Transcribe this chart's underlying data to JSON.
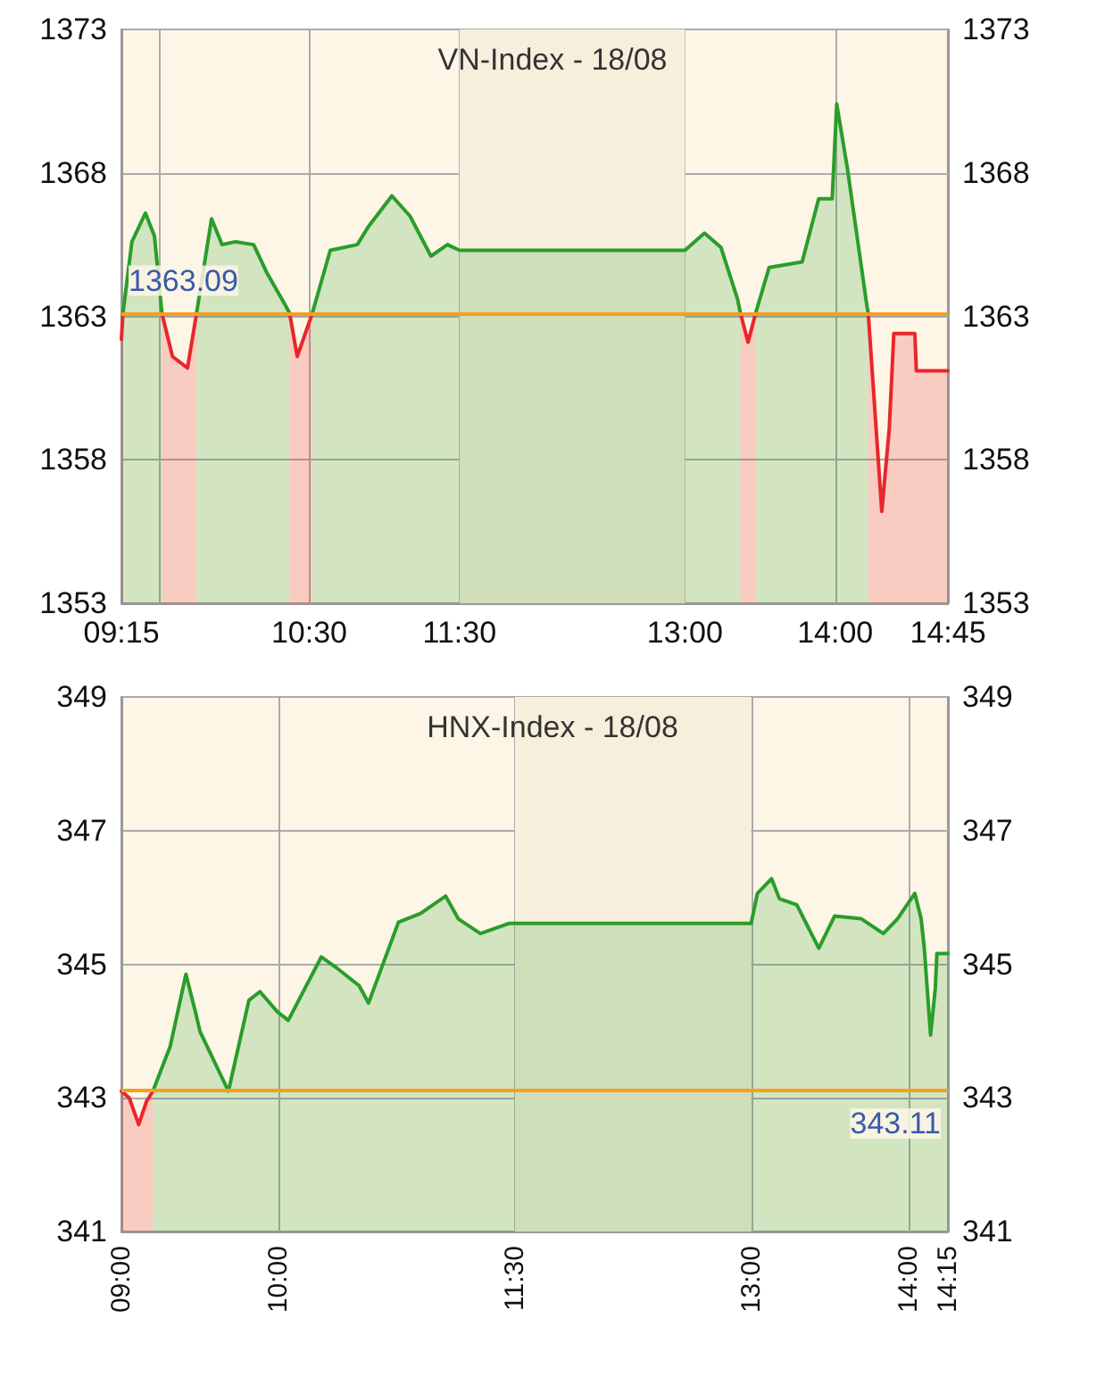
{
  "chart_data": [
    {
      "type": "area",
      "title": "VN-Index - 18/08",
      "grid": true,
      "marker": "none",
      "line_style": "solid",
      "x": [
        9.25,
        9.26,
        9.32,
        9.41,
        9.47,
        9.52,
        9.59,
        9.69,
        9.75,
        9.85,
        9.92,
        10.01,
        10.13,
        10.22,
        10.34,
        10.37,
        10.42,
        10.52,
        10.64,
        10.82,
        10.89,
        11.05,
        11.17,
        11.31,
        11.42,
        11.5,
        13.0,
        13.13,
        13.24,
        13.35,
        13.37,
        13.42,
        13.47,
        13.56,
        13.78,
        13.89,
        13.98,
        14.01,
        14.08,
        14.21,
        14.22,
        14.31,
        14.36,
        14.39,
        14.53,
        14.54,
        14.75
      ],
      "series": [
        {
          "color": "#2a9d2a",
          "values": [
            null,
            1363.1,
            1365.6,
            1366.6,
            1365.8,
            1363.1,
            null,
            null,
            1363.1,
            1366.4,
            1365.5,
            1365.6,
            1365.5,
            1364.5,
            1363.4,
            1363.1,
            null,
            1363.1,
            1365.3,
            1365.5,
            1366.1,
            1367.2,
            1366.5,
            1365.1,
            1365.5,
            1365.3,
            1365.3,
            1365.9,
            1365.4,
            1363.6,
            1363.1,
            null,
            1363.1,
            1364.7,
            1364.9,
            1367.1,
            1367.1,
            1370.4,
            1368.2,
            1363.4,
            1363.1,
            null,
            null,
            null,
            null,
            null,
            null
          ]
        },
        {
          "color": "#e8262b",
          "values": [
            1362.2,
            1363.1,
            null,
            null,
            null,
            1363.1,
            1361.6,
            1361.2,
            1363.1,
            null,
            null,
            null,
            null,
            null,
            null,
            1363.1,
            1361.6,
            1363.1,
            null,
            null,
            null,
            null,
            null,
            null,
            null,
            null,
            null,
            null,
            null,
            null,
            1363.1,
            1362.1,
            1363.1,
            null,
            null,
            null,
            null,
            null,
            null,
            null,
            1363.1,
            1356.2,
            1359.1,
            1362.4,
            1362.4,
            1361.1,
            1361.1
          ]
        }
      ],
      "xlim": [
        9.25,
        14.75
      ],
      "xticks": [
        {
          "value": 9.25,
          "label": "09:15"
        },
        {
          "value": 9.5,
          "label": null
        },
        {
          "value": 10.5,
          "label": "10:30"
        },
        {
          "value": 11.5,
          "label": "11:30"
        },
        {
          "value": 13,
          "label": "13:00"
        },
        {
          "value": 14,
          "label": "14:00"
        },
        {
          "value": 14.75,
          "label": "14:45"
        }
      ],
      "ylim": [
        1353,
        1373
      ],
      "yticks": [
        1353,
        1358,
        1363,
        1368,
        1373
      ],
      "y2lim": [
        1353,
        1373
      ],
      "y2ticks": [
        1353,
        1358,
        1363,
        1368,
        1373
      ],
      "ref_lines": [
        {
          "axis": "y",
          "value": 1363.09,
          "label": "1363.09",
          "color": "#f5a01e"
        }
      ],
      "bands": [
        {
          "axis": "x",
          "from": 11.5,
          "to": 13,
          "color": "#f8eedc"
        }
      ]
    },
    {
      "type": "area",
      "title": "HNX-Index - 18/08",
      "grid": true,
      "marker": "none",
      "line_style": "solid",
      "x": [
        9.0,
        9.05,
        9.11,
        9.16,
        9.2,
        9.31,
        9.41,
        9.47,
        9.5,
        9.68,
        9.81,
        9.88,
        9.99,
        10.06,
        10.27,
        10.37,
        10.51,
        10.57,
        10.76,
        10.9,
        11.06,
        11.14,
        11.28,
        11.46,
        11.5,
        13.0,
        13.04,
        13.13,
        13.18,
        13.29,
        13.43,
        13.53,
        13.7,
        13.84,
        13.93,
        14.04,
        14.08,
        14.1,
        14.14,
        14.17,
        14.18,
        14.25
      ],
      "series": [
        {
          "color": "#2a9d2a",
          "values": [
            null,
            null,
            null,
            null,
            343.1,
            343.77,
            344.85,
            344.29,
            343.99,
            343.1,
            344.46,
            344.59,
            344.29,
            344.16,
            345.11,
            344.94,
            344.68,
            344.42,
            345.63,
            345.76,
            346.02,
            345.68,
            345.46,
            345.61,
            345.61,
            345.61,
            346.06,
            346.28,
            345.98,
            345.89,
            345.24,
            345.72,
            345.68,
            345.46,
            345.68,
            346.06,
            345.68,
            345.24,
            343.94,
            344.64,
            345.16,
            345.16
          ]
        },
        {
          "color": "#e8262b",
          "values": [
            343.1,
            343.0,
            342.6,
            342.95,
            343.1,
            null,
            null,
            null,
            null,
            null,
            null,
            null,
            null,
            null,
            null,
            null,
            null,
            null,
            null,
            null,
            null,
            null,
            null,
            null,
            null,
            null,
            null,
            null,
            null,
            null,
            null,
            null,
            null,
            null,
            null,
            null,
            null,
            null,
            null,
            null,
            null,
            null
          ]
        }
      ],
      "xlim": [
        9.0,
        14.25
      ],
      "xticks": [
        {
          "value": 9,
          "label": "09:00"
        },
        {
          "value": 10,
          "label": "10:00"
        },
        {
          "value": 11.5,
          "label": "11:30"
        },
        {
          "value": 13,
          "label": "13:00"
        },
        {
          "value": 14,
          "label": "14:00"
        },
        {
          "value": 14.25,
          "label": "14:15"
        }
      ],
      "ylim": [
        341,
        349
      ],
      "yticks": [
        341,
        343,
        345,
        347,
        349
      ],
      "y2lim": [
        341,
        349
      ],
      "y2ticks": [
        341,
        343,
        345,
        347,
        349
      ],
      "ref_lines": [
        {
          "axis": "y",
          "value": 343.11,
          "label": "343.11",
          "color": "#f5a01e"
        }
      ],
      "bands": [
        {
          "axis": "x",
          "from": 11.5,
          "to": 13,
          "color": "#f8eedc"
        }
      ]
    }
  ]
}
